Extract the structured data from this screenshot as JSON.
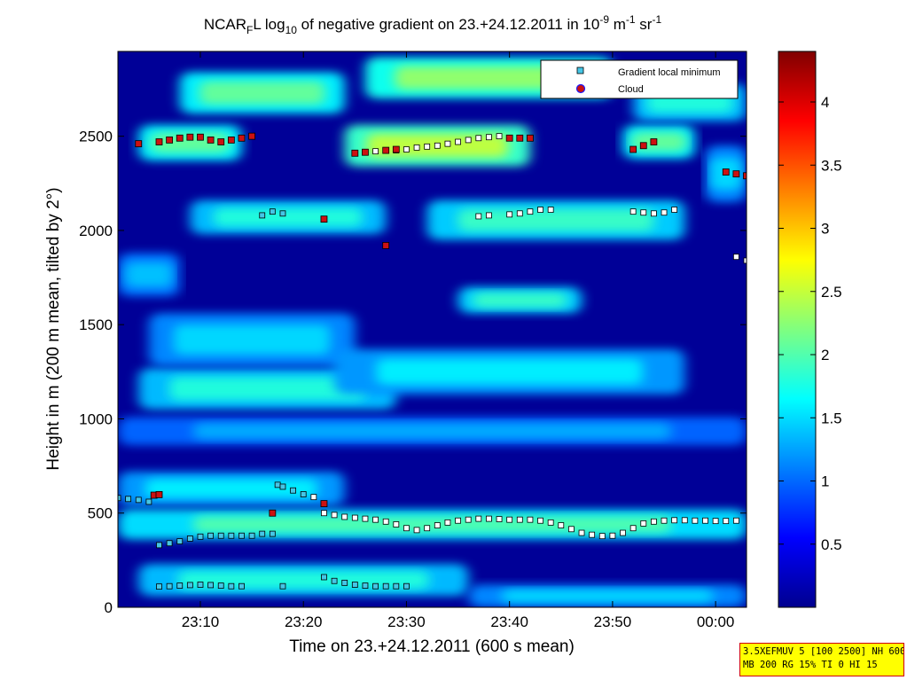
{
  "chart_data": {
    "type": "heatmap",
    "title": {
      "pre": "NCAR",
      "sub1": "F",
      "mid1": "L log",
      "sub2": "10",
      "mid2": " of negative gradient on 23.+24.12.2011 in 10",
      "sup1": "-9",
      "mid3": " m",
      "sup2": "-1",
      "mid4": " sr",
      "sup3": "-1"
    },
    "xlabel": "Time on 23.+24.12.2011 (600 s mean)",
    "ylabel": "Height in m (200 m mean, tilted by 2°)",
    "x_axis": {
      "start_min_after_2300": 2,
      "end_min_after_2300": 63,
      "ticks": [
        {
          "value": 10,
          "label": "23:10"
        },
        {
          "value": 20,
          "label": "23:20"
        },
        {
          "value": 30,
          "label": "23:30"
        },
        {
          "value": 40,
          "label": "23:40"
        },
        {
          "value": 50,
          "label": "23:50"
        },
        {
          "value": 60,
          "label": "00:00"
        }
      ]
    },
    "y_axis": {
      "ylim": [
        0,
        2950
      ],
      "ticks": [
        {
          "value": 0,
          "label": "0"
        },
        {
          "value": 500,
          "label": "500"
        },
        {
          "value": 1000,
          "label": "1000"
        },
        {
          "value": 1500,
          "label": "1500"
        },
        {
          "value": 2000,
          "label": "2000"
        },
        {
          "value": 2500,
          "label": "2500"
        }
      ]
    },
    "colorbar": {
      "range": [
        0,
        4.4
      ],
      "colormap": "jet",
      "ticks": [
        {
          "value": 0.5,
          "label": "0.5"
        },
        {
          "value": 1,
          "label": "1"
        },
        {
          "value": 1.5,
          "label": "1.5"
        },
        {
          "value": 2,
          "label": "2"
        },
        {
          "value": 2.5,
          "label": "2.5"
        },
        {
          "value": 3,
          "label": "3"
        },
        {
          "value": 3.5,
          "label": "3.5"
        },
        {
          "value": 4,
          "label": "4"
        }
      ]
    },
    "layers": [
      {
        "x0": 2,
        "x1": 24,
        "y0": 540,
        "y1": 720,
        "level": 1.6
      },
      {
        "x0": 2,
        "x1": 63,
        "y0": 360,
        "y1": 520,
        "level": 2.0
      },
      {
        "x0": 4,
        "x1": 36,
        "y0": 60,
        "y1": 230,
        "level": 1.8
      },
      {
        "x0": 36,
        "x1": 63,
        "y0": 0,
        "y1": 120,
        "level": 1.5
      },
      {
        "x0": 2,
        "x1": 63,
        "y0": 860,
        "y1": 1010,
        "level": 1.3
      },
      {
        "x0": 4,
        "x1": 29,
        "y0": 1050,
        "y1": 1270,
        "level": 1.8
      },
      {
        "x0": 5,
        "x1": 25,
        "y0": 1280,
        "y1": 1560,
        "level": 1.5
      },
      {
        "x0": 23,
        "x1": 57,
        "y0": 1130,
        "y1": 1370,
        "level": 1.6
      },
      {
        "x0": 35,
        "x1": 47,
        "y0": 1560,
        "y1": 1700,
        "level": 1.9
      },
      {
        "x0": 2,
        "x1": 8,
        "y0": 1650,
        "y1": 1880,
        "level": 1.4
      },
      {
        "x0": 9,
        "x1": 28,
        "y0": 1980,
        "y1": 2160,
        "level": 1.8
      },
      {
        "x0": 32,
        "x1": 57,
        "y0": 1950,
        "y1": 2160,
        "level": 1.9
      },
      {
        "x0": 4,
        "x1": 14,
        "y0": 2370,
        "y1": 2560,
        "level": 2.1
      },
      {
        "x0": 24,
        "x1": 42,
        "y0": 2340,
        "y1": 2560,
        "level": 2.5
      },
      {
        "x0": 51,
        "x1": 58,
        "y0": 2380,
        "y1": 2560,
        "level": 2.1
      },
      {
        "x0": 8,
        "x1": 24,
        "y0": 2620,
        "y1": 2840,
        "level": 2.1
      },
      {
        "x0": 26,
        "x1": 50,
        "y0": 2700,
        "y1": 2920,
        "level": 2.3
      },
      {
        "x0": 52,
        "x1": 63,
        "y0": 2580,
        "y1": 2780,
        "level": 1.8
      },
      {
        "x0": 59,
        "x1": 63,
        "y0": 2150,
        "y1": 2450,
        "level": 1.5
      }
    ],
    "series": [
      {
        "name": "Gradient local minimum",
        "marker": "square",
        "points": [
          [
            2,
            580
          ],
          [
            3,
            575
          ],
          [
            4,
            570
          ],
          [
            5,
            560
          ],
          [
            6,
            330
          ],
          [
            7,
            340
          ],
          [
            8,
            350
          ],
          [
            9,
            365
          ],
          [
            10,
            375
          ],
          [
            11,
            380
          ],
          [
            12,
            380
          ],
          [
            13,
            380
          ],
          [
            14,
            380
          ],
          [
            15,
            380
          ],
          [
            16,
            390
          ],
          [
            17,
            390
          ],
          [
            17.5,
            650
          ],
          [
            18,
            640
          ],
          [
            19,
            620
          ],
          [
            20,
            600
          ],
          [
            21,
            585
          ],
          [
            22,
            500
          ],
          [
            23,
            490
          ],
          [
            24,
            480
          ],
          [
            25,
            475
          ],
          [
            26,
            470
          ],
          [
            27,
            465
          ],
          [
            28,
            455
          ],
          [
            29,
            440
          ],
          [
            30,
            420
          ],
          [
            31,
            410
          ],
          [
            32,
            420
          ],
          [
            33,
            435
          ],
          [
            34,
            450
          ],
          [
            35,
            460
          ],
          [
            36,
            465
          ],
          [
            37,
            470
          ],
          [
            38,
            470
          ],
          [
            39,
            468
          ],
          [
            40,
            465
          ],
          [
            41,
            465
          ],
          [
            42,
            465
          ],
          [
            43,
            460
          ],
          [
            44,
            450
          ],
          [
            45,
            435
          ],
          [
            46,
            415
          ],
          [
            47,
            395
          ],
          [
            48,
            385
          ],
          [
            49,
            378
          ],
          [
            50,
            380
          ],
          [
            51,
            395
          ],
          [
            52,
            420
          ],
          [
            53,
            445
          ],
          [
            54,
            455
          ],
          [
            55,
            460
          ],
          [
            56,
            462
          ],
          [
            57,
            462
          ],
          [
            58,
            460
          ],
          [
            59,
            460
          ],
          [
            60,
            458
          ],
          [
            61,
            458
          ],
          [
            62,
            460
          ],
          [
            6,
            110
          ],
          [
            7,
            112
          ],
          [
            8,
            115
          ],
          [
            9,
            118
          ],
          [
            10,
            120
          ],
          [
            11,
            118
          ],
          [
            12,
            115
          ],
          [
            13,
            112
          ],
          [
            14,
            112
          ],
          [
            18,
            112
          ],
          [
            22,
            160
          ],
          [
            23,
            140
          ],
          [
            24,
            130
          ],
          [
            25,
            120
          ],
          [
            26,
            115
          ],
          [
            27,
            112
          ],
          [
            28,
            112
          ],
          [
            29,
            112
          ],
          [
            30,
            112
          ],
          [
            16,
            2080
          ],
          [
            17,
            2100
          ],
          [
            18,
            2090
          ],
          [
            37,
            2075
          ],
          [
            38,
            2080
          ],
          [
            40,
            2085
          ],
          [
            41,
            2090
          ],
          [
            42,
            2100
          ],
          [
            43,
            2110
          ],
          [
            44,
            2110
          ],
          [
            52,
            2100
          ],
          [
            53,
            2095
          ],
          [
            54,
            2090
          ],
          [
            55,
            2095
          ],
          [
            56,
            2110
          ],
          [
            62,
            1860
          ],
          [
            63,
            1840
          ],
          [
            27,
            2420
          ],
          [
            29,
            2425
          ],
          [
            30,
            2430
          ],
          [
            31,
            2440
          ],
          [
            32,
            2445
          ],
          [
            33,
            2450
          ],
          [
            34,
            2460
          ],
          [
            35,
            2470
          ],
          [
            36,
            2480
          ],
          [
            37,
            2490
          ],
          [
            38,
            2495
          ],
          [
            39,
            2500
          ]
        ]
      },
      {
        "name": "Cloud",
        "marker": "circle",
        "points": [
          [
            4,
            2460
          ],
          [
            6,
            2470
          ],
          [
            7,
            2480
          ],
          [
            8,
            2490
          ],
          [
            9,
            2495
          ],
          [
            10,
            2495
          ],
          [
            11,
            2480
          ],
          [
            12,
            2470
          ],
          [
            13,
            2480
          ],
          [
            14,
            2490
          ],
          [
            15,
            2500
          ],
          [
            25,
            2410
          ],
          [
            26,
            2415
          ],
          [
            28,
            2425
          ],
          [
            29,
            2430
          ],
          [
            40,
            2490
          ],
          [
            41,
            2490
          ],
          [
            42,
            2490
          ],
          [
            52,
            2430
          ],
          [
            53,
            2450
          ],
          [
            54,
            2470
          ],
          [
            61,
            2310
          ],
          [
            62,
            2300
          ],
          [
            63,
            2290
          ],
          [
            22,
            2060
          ],
          [
            28,
            1920
          ],
          [
            5.5,
            595
          ],
          [
            6,
            598
          ],
          [
            22,
            550
          ],
          [
            17,
            500
          ]
        ]
      }
    ],
    "legend": {
      "position": "top-right",
      "entries": [
        "Gradient local minimum",
        "Cloud"
      ]
    }
  },
  "colors": {
    "minimum_marker_fill": "#45c6e6",
    "cloud_marker_fill": "#cc1111",
    "background_level": 0.1
  },
  "info_box": {
    "line1": "3.5XEFMUV 5 [100 2500] NH 600",
    "line2": "MB 200 RG 15% TI 0 HI 15"
  }
}
